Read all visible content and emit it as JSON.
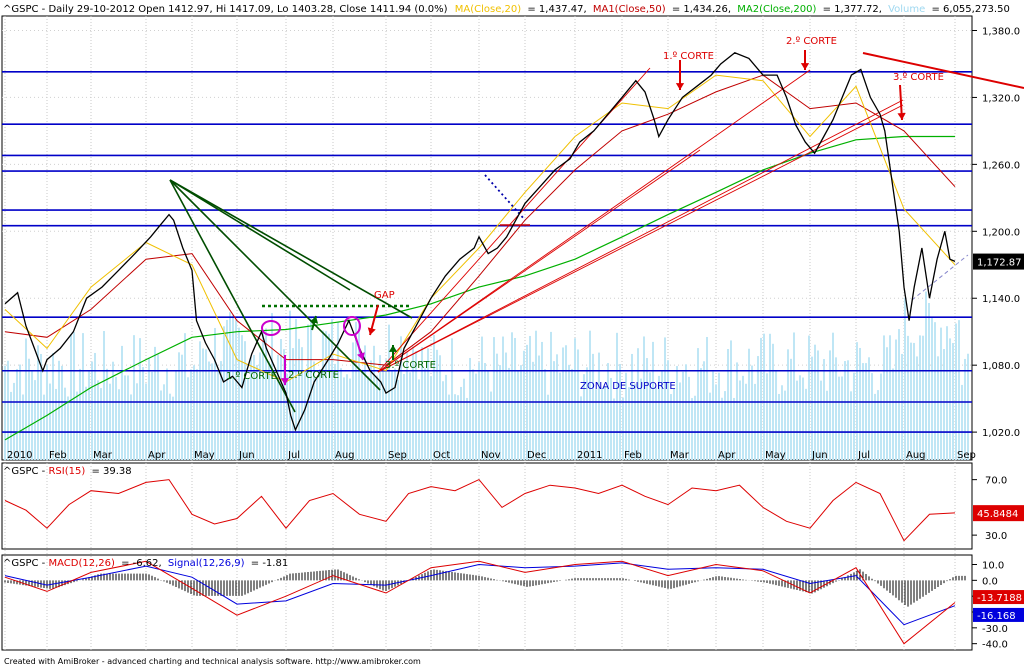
{
  "header": {
    "ticker_line": "^GSPC - Daily 29-10-2012 Open 1412.97, Hi 1417.09, Lo 1403.28, Close 1411.94 (0.0%)",
    "ma20_label": "MA(Close,20)",
    "ma20_value": "= 1,437.47,",
    "ma50_label": "MA1(Close,50)",
    "ma50_value": "= 1,434.26,",
    "ma200_label": "MA2(Close,200)",
    "ma200_value": "= 1,377.72,",
    "volume_label": "Volume",
    "volume_value": "= 6,055,273.50"
  },
  "rsi_header": {
    "prefix": "^GSPC - ",
    "label": "RSI(15)",
    "value": "= 39.38"
  },
  "macd_header": {
    "prefix": "^GSPC - ",
    "macd_label": "MACD(12,26)",
    "macd_value": "= -6.62,",
    "signal_label": "Signal(12,26,9)",
    "signal_value": "= -1.81"
  },
  "footer": "Created with AmiBroker - advanced charting and technical analysis software. http://www.amibroker.com",
  "colors": {
    "price": "#000000",
    "ma20": "#f0c000",
    "ma50": "#c00000",
    "ma200": "#00b000",
    "volume": "#bfe6f5",
    "level_line": "#0000c8",
    "trend_green": "#004d00",
    "trend_red": "#dd0000",
    "rsi": "#dd0000",
    "macd": "#dd0000",
    "signal": "#0000dd"
  },
  "annotations": {
    "corte1_left": "1.º CORTE",
    "corte2_left": "2.º CORTE",
    "corte3_left": "3.º CORTE",
    "gap": "GAP",
    "zona": "ZONA DE SUPORTE",
    "corte1_right": "1.º CORTE",
    "corte2_right": "2.º CORTE",
    "corte3_right": "3.º CORTE"
  },
  "chart_data": [
    {
      "type": "line",
      "name": "price",
      "xlabels": [
        "2010",
        "Feb",
        "Mar",
        "Apr",
        "May",
        "Jun",
        "Jul",
        "Aug",
        "Sep",
        "Oct",
        "Nov",
        "Dec",
        "2011",
        "Feb",
        "Mar",
        "Apr",
        "May",
        "Jun",
        "Jul",
        "Aug",
        "Sep"
      ],
      "yticks": [
        "1,380.0",
        "1,320.0",
        "1,260.0",
        "1,200.0",
        "1,140.0",
        "1,080.0",
        "1,020.0"
      ],
      "ylim": [
        995,
        1393
      ],
      "last_value_label": "1,172.87",
      "horizontal_levels": [
        1343,
        1296,
        1268,
        1254,
        1219,
        1205,
        1123,
        1075,
        1047,
        1020
      ],
      "close": [
        [
          0,
          1135
        ],
        [
          0.3,
          1145
        ],
        [
          0.5,
          1115
        ],
        [
          0.7,
          1095
        ],
        [
          0.9,
          1075
        ],
        [
          1.0,
          1085
        ],
        [
          1.3,
          1095
        ],
        [
          1.6,
          1110
        ],
        [
          1.9,
          1140
        ],
        [
          2.2,
          1150
        ],
        [
          2.5,
          1165
        ],
        [
          2.8,
          1180
        ],
        [
          3.1,
          1195
        ],
        [
          3.3,
          1205
        ],
        [
          3.5,
          1215
        ],
        [
          3.6,
          1210
        ],
        [
          3.8,
          1185
        ],
        [
          4.0,
          1165
        ],
        [
          4.1,
          1120
        ],
        [
          4.3,
          1100
        ],
        [
          4.5,
          1085
        ],
        [
          4.7,
          1065
        ],
        [
          4.9,
          1070
        ],
        [
          5.1,
          1060
        ],
        [
          5.3,
          1090
        ],
        [
          5.5,
          1110
        ],
        [
          5.6,
          1095
        ],
        [
          5.8,
          1075
        ],
        [
          6.0,
          1055
        ],
        [
          6.1,
          1035
        ],
        [
          6.2,
          1022
        ],
        [
          6.4,
          1040
        ],
        [
          6.6,
          1065
        ],
        [
          6.9,
          1085
        ],
        [
          7.1,
          1100
        ],
        [
          7.3,
          1120
        ],
        [
          7.5,
          1095
        ],
        [
          7.7,
          1075
        ],
        [
          7.9,
          1065
        ],
        [
          8.0,
          1055
        ],
        [
          8.2,
          1060
        ],
        [
          8.4,
          1095
        ],
        [
          8.6,
          1110
        ],
        [
          8.8,
          1125
        ],
        [
          9.0,
          1140
        ],
        [
          9.3,
          1160
        ],
        [
          9.6,
          1175
        ],
        [
          9.9,
          1185
        ],
        [
          10.0,
          1195
        ],
        [
          10.2,
          1180
        ],
        [
          10.4,
          1185
        ],
        [
          10.6,
          1195
        ],
        [
          10.8,
          1210
        ],
        [
          11.0,
          1225
        ],
        [
          11.3,
          1240
        ],
        [
          11.6,
          1255
        ],
        [
          11.9,
          1265
        ],
        [
          12.1,
          1280
        ],
        [
          12.4,
          1290
        ],
        [
          12.7,
          1305
        ],
        [
          13.0,
          1320
        ],
        [
          13.3,
          1335
        ],
        [
          13.5,
          1325
        ],
        [
          13.7,
          1300
        ],
        [
          13.8,
          1285
        ],
        [
          14.0,
          1300
        ],
        [
          14.3,
          1320
        ],
        [
          14.6,
          1330
        ],
        [
          14.9,
          1340
        ],
        [
          15.1,
          1350
        ],
        [
          15.4,
          1360
        ],
        [
          15.7,
          1355
        ],
        [
          16.0,
          1340
        ],
        [
          16.3,
          1340
        ],
        [
          16.5,
          1320
        ],
        [
          16.7,
          1295
        ],
        [
          16.9,
          1280
        ],
        [
          17.1,
          1270
        ],
        [
          17.3,
          1285
        ],
        [
          17.5,
          1300
        ],
        [
          17.7,
          1320
        ],
        [
          17.9,
          1340
        ],
        [
          18.1,
          1345
        ],
        [
          18.3,
          1320
        ],
        [
          18.5,
          1305
        ],
        [
          18.6,
          1290
        ],
        [
          18.7,
          1260
        ],
        [
          18.8,
          1230
        ],
        [
          18.9,
          1200
        ],
        [
          19.0,
          1150
        ],
        [
          19.1,
          1120
        ],
        [
          19.2,
          1150
        ],
        [
          19.35,
          1185
        ],
        [
          19.5,
          1140
        ],
        [
          19.65,
          1175
        ],
        [
          19.8,
          1200
        ],
        [
          19.9,
          1175
        ],
        [
          20.0,
          1173
        ]
      ],
      "ma20": [
        [
          0,
          1130
        ],
        [
          1,
          1095
        ],
        [
          2,
          1150
        ],
        [
          3,
          1190
        ],
        [
          4,
          1170
        ],
        [
          5,
          1085
        ],
        [
          6,
          1065
        ],
        [
          7,
          1090
        ],
        [
          8,
          1075
        ],
        [
          9,
          1140
        ],
        [
          10,
          1185
        ],
        [
          11,
          1235
        ],
        [
          12,
          1285
        ],
        [
          13,
          1315
        ],
        [
          14,
          1310
        ],
        [
          15,
          1340
        ],
        [
          16,
          1335
        ],
        [
          17,
          1285
        ],
        [
          18,
          1330
        ],
        [
          19,
          1220
        ],
        [
          20,
          1170
        ]
      ],
      "ma50": [
        [
          0,
          1110
        ],
        [
          1,
          1105
        ],
        [
          2,
          1130
        ],
        [
          3,
          1175
        ],
        [
          4,
          1180
        ],
        [
          5,
          1120
        ],
        [
          6,
          1085
        ],
        [
          7,
          1085
        ],
        [
          8,
          1080
        ],
        [
          9,
          1110
        ],
        [
          10,
          1160
        ],
        [
          11,
          1210
        ],
        [
          12,
          1255
        ],
        [
          13,
          1290
        ],
        [
          14,
          1305
        ],
        [
          15,
          1325
        ],
        [
          16,
          1340
        ],
        [
          17,
          1310
        ],
        [
          18,
          1315
        ],
        [
          19,
          1290
        ],
        [
          20,
          1240
        ]
      ],
      "ma200": [
        [
          0,
          1013
        ],
        [
          1,
          1035
        ],
        [
          2,
          1060
        ],
        [
          3,
          1085
        ],
        [
          4,
          1105
        ],
        [
          5,
          1110
        ],
        [
          6,
          1112
        ],
        [
          7,
          1118
        ],
        [
          8,
          1125
        ],
        [
          9,
          1135
        ],
        [
          10,
          1150
        ],
        [
          11,
          1160
        ],
        [
          12,
          1175
        ],
        [
          13,
          1195
        ],
        [
          14,
          1215
        ],
        [
          15,
          1235
        ],
        [
          16,
          1255
        ],
        [
          17,
          1270
        ],
        [
          18,
          1282
        ],
        [
          19,
          1285
        ],
        [
          20,
          1285
        ]
      ]
    },
    {
      "type": "line",
      "name": "RSI(15)",
      "yticks": [
        "70.0",
        "30.0"
      ],
      "ylim": [
        20,
        82
      ],
      "last_value_label": "45.8484",
      "values": [
        [
          0,
          55
        ],
        [
          0.5,
          48
        ],
        [
          1,
          35
        ],
        [
          1.5,
          52
        ],
        [
          2,
          62
        ],
        [
          2.5,
          60
        ],
        [
          3,
          68
        ],
        [
          3.5,
          70
        ],
        [
          4,
          45
        ],
        [
          4.5,
          38
        ],
        [
          5,
          42
        ],
        [
          5.5,
          58
        ],
        [
          6,
          35
        ],
        [
          6.5,
          55
        ],
        [
          7,
          60
        ],
        [
          7.5,
          45
        ],
        [
          8,
          40
        ],
        [
          8.5,
          60
        ],
        [
          9,
          65
        ],
        [
          9.5,
          62
        ],
        [
          10,
          70
        ],
        [
          10.5,
          50
        ],
        [
          11,
          60
        ],
        [
          11.5,
          66
        ],
        [
          12,
          64
        ],
        [
          12.5,
          60
        ],
        [
          13,
          66
        ],
        [
          13.5,
          58
        ],
        [
          14,
          52
        ],
        [
          14.5,
          64
        ],
        [
          15,
          62
        ],
        [
          15.5,
          66
        ],
        [
          16,
          50
        ],
        [
          16.5,
          40
        ],
        [
          17,
          35
        ],
        [
          17.5,
          55
        ],
        [
          18,
          68
        ],
        [
          18.5,
          60
        ],
        [
          19,
          26
        ],
        [
          19.5,
          45
        ],
        [
          20,
          46
        ]
      ]
    },
    {
      "type": "line",
      "name": "MACD",
      "yticks": [
        "10.0",
        "0.0",
        "-10.0",
        "-20.0",
        "-30.0",
        "-40.0"
      ],
      "ylim": [
        -44,
        16
      ],
      "last_value_labels": [
        "-13.7188",
        "-16.168"
      ],
      "macd": [
        [
          0,
          2
        ],
        [
          1,
          -7
        ],
        [
          2,
          5
        ],
        [
          3,
          12
        ],
        [
          4,
          -5
        ],
        [
          5,
          -22
        ],
        [
          6,
          -10
        ],
        [
          7,
          3
        ],
        [
          8,
          -8
        ],
        [
          9,
          8
        ],
        [
          10,
          12
        ],
        [
          11,
          5
        ],
        [
          12,
          10
        ],
        [
          13,
          12
        ],
        [
          14,
          3
        ],
        [
          15,
          10
        ],
        [
          16,
          6
        ],
        [
          17,
          -8
        ],
        [
          18,
          8
        ],
        [
          19,
          -40
        ],
        [
          20,
          -14
        ]
      ],
      "signal": [
        [
          0,
          3
        ],
        [
          1,
          -3
        ],
        [
          2,
          2
        ],
        [
          3,
          9
        ],
        [
          4,
          2
        ],
        [
          5,
          -15
        ],
        [
          6,
          -13
        ],
        [
          7,
          -2
        ],
        [
          8,
          -3
        ],
        [
          9,
          3
        ],
        [
          10,
          10
        ],
        [
          11,
          8
        ],
        [
          12,
          9
        ],
        [
          13,
          11
        ],
        [
          14,
          7
        ],
        [
          15,
          8
        ],
        [
          16,
          7
        ],
        [
          17,
          -2
        ],
        [
          18,
          3
        ],
        [
          19,
          -28
        ],
        [
          20,
          -16
        ]
      ]
    }
  ]
}
